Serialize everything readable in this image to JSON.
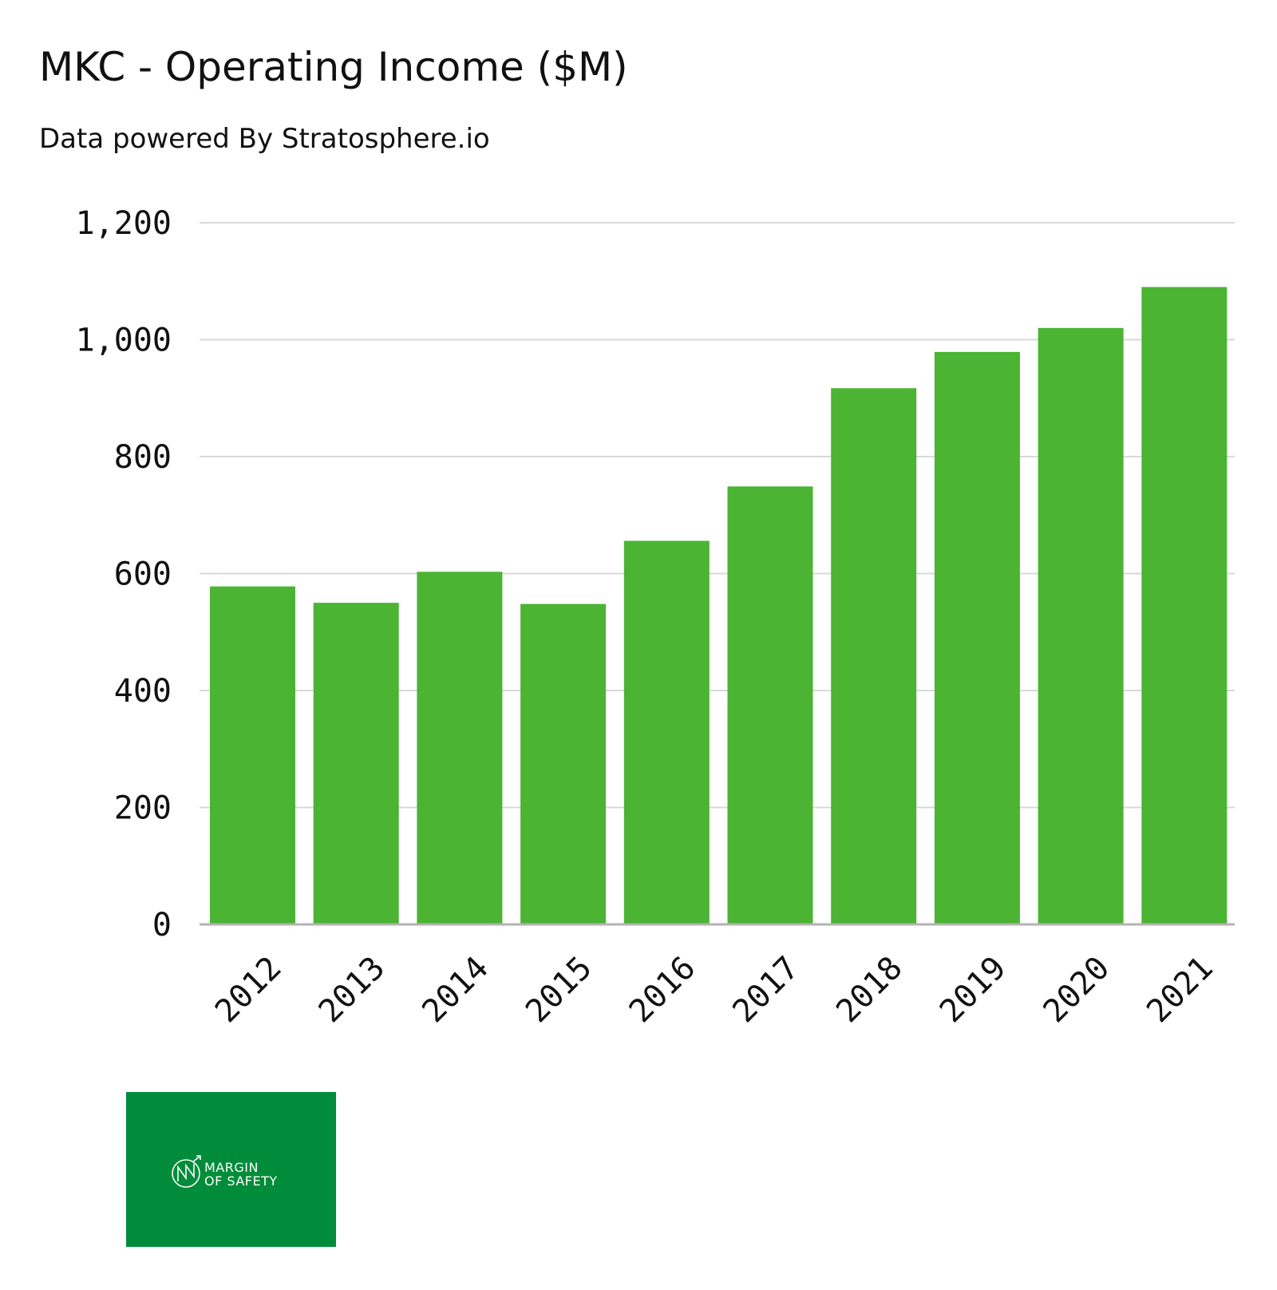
{
  "title": "MKC - Operating Income ($M)",
  "subtitle": "Data powered By Stratosphere.io",
  "colors": {
    "bar": "#4bb433",
    "grid": "#d9d9d9",
    "axis": "#b3b3b3",
    "logo_bg": "#008c3a"
  },
  "logo": {
    "line1": "MARGIN",
    "line2": "OF SAFETY"
  },
  "chart_data": {
    "type": "bar",
    "title": "MKC - Operating Income ($M)",
    "subtitle": "Data powered By Stratosphere.io",
    "xlabel": "",
    "ylabel": "",
    "categories": [
      "2012",
      "2013",
      "2014",
      "2015",
      "2016",
      "2017",
      "2018",
      "2019",
      "2020",
      "2021"
    ],
    "series": [
      {
        "name": "Operating Income",
        "values": [
          578,
          550,
          603,
          548,
          656,
          749,
          917,
          979,
          1020,
          1090
        ]
      }
    ],
    "ylim": [
      0,
      1200
    ],
    "yticks": [
      0,
      200,
      400,
      600,
      800,
      1000,
      1200
    ],
    "ytick_labels": [
      "0",
      "200",
      "400",
      "600",
      "800",
      "1,000",
      "1,200"
    ],
    "grid": true,
    "legend": "none"
  }
}
